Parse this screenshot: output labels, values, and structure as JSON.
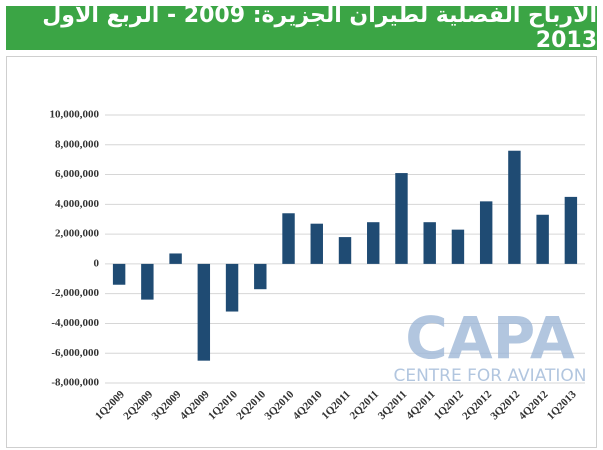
{
  "chart_data": {
    "type": "bar",
    "title": "الأرباح الفصلية لطيران الجزيرة: 2009 - الربع الأول 2013",
    "categories": [
      "1Q2009",
      "2Q2009",
      "3Q2009",
      "4Q2009",
      "1Q2010",
      "2Q2010",
      "3Q2010",
      "4Q2010",
      "1Q2011",
      "2Q2011",
      "3Q2011",
      "4Q2011",
      "1Q2012",
      "2Q2012",
      "3Q2012",
      "4Q2012",
      "1Q2013"
    ],
    "values": [
      -1400000,
      -2400000,
      700000,
      -6500000,
      -3200000,
      -1700000,
      3400000,
      2700000,
      1800000,
      2800000,
      6100000,
      2800000,
      2300000,
      4200000,
      7600000,
      3300000,
      4500000
    ],
    "color": "#1f4b73",
    "ylim": [
      -8000000,
      10000000
    ],
    "yticks": [
      {
        "value": -8000000,
        "label": "-8,000,000"
      },
      {
        "value": -6000000,
        "label": "-6,000,000"
      },
      {
        "value": -4000000,
        "label": "-4,000,000"
      },
      {
        "value": -2000000,
        "label": "-2,000,000"
      },
      0,
      {
        "value": 2000000,
        "label": "2,000,000"
      },
      {
        "value": 4000000,
        "label": "4,000,000"
      },
      {
        "value": 6000000,
        "label": "6,000,000"
      },
      {
        "value": 8000000,
        "label": "8,000,000"
      },
      {
        "value": 10000000,
        "label": "10,000,000"
      }
    ],
    "grid": true,
    "watermark": {
      "logo": "CAPA",
      "tagline": "CENTRE FOR AVIATION"
    }
  }
}
